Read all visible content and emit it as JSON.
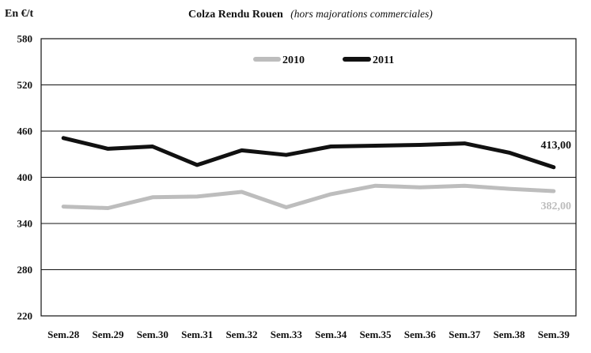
{
  "header": {
    "unit_label": "En €/t",
    "title": "Colza Rendu Rouen",
    "subtitle": "(hors majorations commerciales)"
  },
  "chart_data": {
    "type": "line",
    "title": "Colza Rendu Rouen",
    "subtitle": "(hors majorations commerciales)",
    "ylabel": "En €/t",
    "ylim": [
      220,
      580
    ],
    "yticks": [
      220,
      280,
      340,
      400,
      460,
      520,
      580
    ],
    "categories": [
      "Sem.28",
      "Sem.29",
      "Sem.30",
      "Sem.31",
      "Sem.32",
      "Sem.33",
      "Sem.34",
      "Sem.35",
      "Sem.36",
      "Sem.37",
      "Sem.38",
      "Sem.39"
    ],
    "grid": "horizontal",
    "legend_position": "top-center",
    "series": [
      {
        "name": "2010",
        "color": "#bdbdbd",
        "values": [
          362,
          360,
          374,
          375,
          381,
          361,
          378,
          389,
          387,
          389,
          385,
          382
        ],
        "end_label": "382,00"
      },
      {
        "name": "2011",
        "color": "#111111",
        "values": [
          451,
          437,
          440,
          416,
          435,
          429,
          440,
          441,
          442,
          444,
          432,
          413
        ],
        "end_label": "413,00"
      }
    ]
  }
}
